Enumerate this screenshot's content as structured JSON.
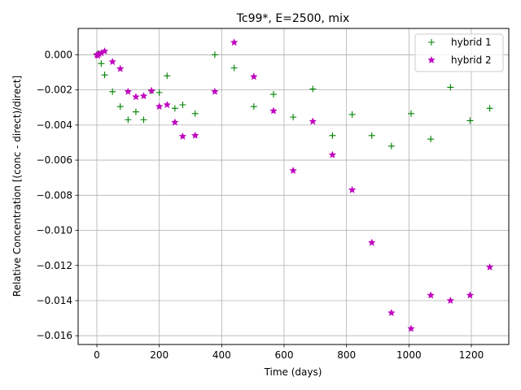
{
  "chart_data": {
    "type": "scatter",
    "title": "Tc99*, E=2500, mix",
    "xlabel": "Time (days)",
    "ylabel": "Relative Concentration [(conc - direct)/direct]",
    "xlim": [
      -60,
      1320
    ],
    "ylim": [
      -0.0165,
      0.0015
    ],
    "xticks": [
      0,
      200,
      400,
      600,
      800,
      1000,
      1200
    ],
    "xtick_labels": [
      "0",
      "200",
      "400",
      "600",
      "800",
      "1000",
      "1200"
    ],
    "yticks": [
      0.0,
      -0.002,
      -0.004,
      -0.006,
      -0.008,
      -0.01,
      -0.012,
      -0.014,
      -0.016
    ],
    "ytick_labels": [
      "0.000",
      "−0.002",
      "−0.004",
      "−0.006",
      "−0.008",
      "−0.010",
      "−0.012",
      "−0.014",
      "−0.016"
    ],
    "grid": true,
    "legend_position": "top-right",
    "series": [
      {
        "name": "hybrid 1",
        "color": "#008000",
        "marker": "plus",
        "points": [
          [
            0,
            0.0
          ],
          [
            3,
            5e-05
          ],
          [
            7,
            5e-05
          ],
          [
            14,
            -0.0005
          ],
          [
            25,
            -0.00115
          ],
          [
            50,
            -0.0021
          ],
          [
            75,
            -0.00295
          ],
          [
            100,
            -0.0037
          ],
          [
            125,
            -0.00325
          ],
          [
            150,
            -0.0037
          ],
          [
            175,
            -0.00205
          ],
          [
            200,
            -0.00215
          ],
          [
            225,
            -0.0012
          ],
          [
            250,
            -0.00305
          ],
          [
            275,
            -0.00285
          ],
          [
            315,
            -0.00335
          ],
          [
            378,
            0.0
          ],
          [
            440,
            -0.00075
          ],
          [
            503,
            -0.00295
          ],
          [
            566,
            -0.00225
          ],
          [
            629,
            -0.00355
          ],
          [
            692,
            -0.00195
          ],
          [
            755,
            -0.0046
          ],
          [
            818,
            -0.0034
          ],
          [
            881,
            -0.0046
          ],
          [
            944,
            -0.0052
          ],
          [
            1007,
            -0.00335
          ],
          [
            1070,
            -0.0048
          ],
          [
            1133,
            -0.00185
          ],
          [
            1196,
            -0.00375
          ],
          [
            1259,
            -0.00305
          ]
        ]
      },
      {
        "name": "hybrid 2",
        "color": "#bf00bf",
        "marker": "star",
        "points": [
          [
            0,
            0.0
          ],
          [
            3,
            -5e-05
          ],
          [
            7,
            5e-05
          ],
          [
            14,
            0.0001
          ],
          [
            25,
            0.0002
          ],
          [
            50,
            -0.0004
          ],
          [
            75,
            -0.0008
          ],
          [
            100,
            -0.0021
          ],
          [
            125,
            -0.0024
          ],
          [
            150,
            -0.00235
          ],
          [
            175,
            -0.00205
          ],
          [
            200,
            -0.00295
          ],
          [
            225,
            -0.00285
          ],
          [
            250,
            -0.00385
          ],
          [
            275,
            -0.00465
          ],
          [
            315,
            -0.0046
          ],
          [
            378,
            -0.0021
          ],
          [
            440,
            0.0007
          ],
          [
            503,
            -0.00125
          ],
          [
            566,
            -0.0032
          ],
          [
            629,
            -0.0066
          ],
          [
            692,
            -0.0038
          ],
          [
            755,
            -0.0057
          ],
          [
            818,
            -0.0077
          ],
          [
            881,
            -0.0107
          ],
          [
            944,
            -0.0147
          ],
          [
            1007,
            -0.0156
          ],
          [
            1070,
            -0.0137
          ],
          [
            1133,
            -0.014
          ],
          [
            1196,
            -0.0137
          ],
          [
            1259,
            -0.0121
          ]
        ]
      }
    ]
  }
}
